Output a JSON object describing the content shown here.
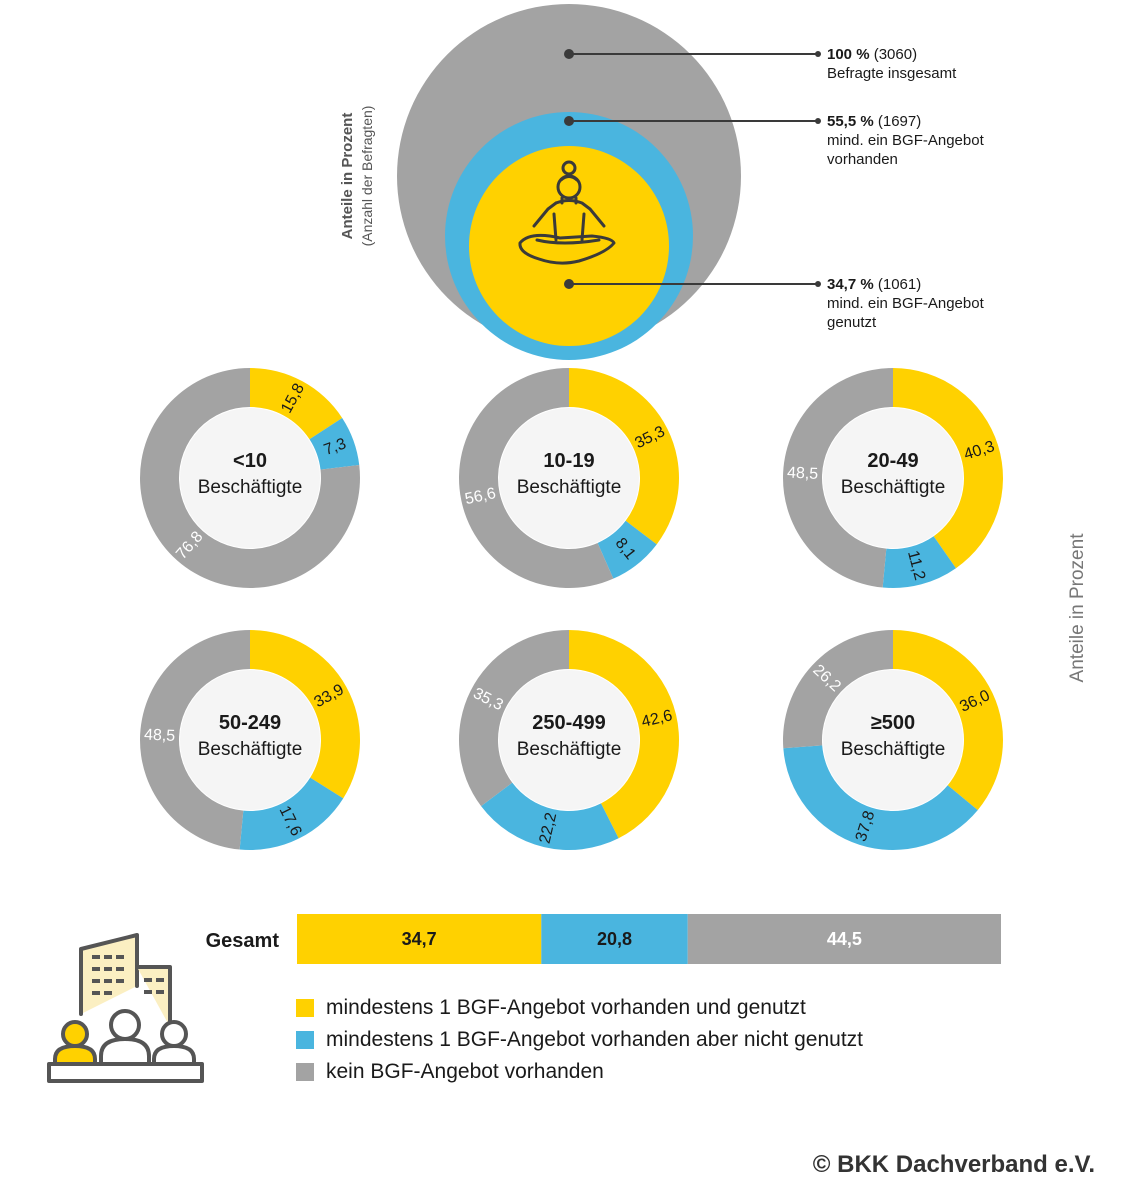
{
  "colors": {
    "yellow": "#FFD100",
    "blue": "#4AB5DF",
    "gray": "#A3A3A3",
    "inner": "#F5F5F5"
  },
  "top": {
    "axis_title": "Anteile in Prozent",
    "axis_subtitle": "(Anzahl der Befragten)",
    "labels": [
      {
        "pct": "100 %",
        "count": "(3060)",
        "lines": [
          "Befragte insgesamt"
        ]
      },
      {
        "pct": "55,5 %",
        "count": "(1697)",
        "lines": [
          "mind. ein BGF-Angebot",
          "vorhanden"
        ]
      },
      {
        "pct": "34,7 %",
        "count": "(1061)",
        "lines": [
          "mind. ein BGF-Angebot",
          "genutzt"
        ]
      }
    ]
  },
  "side_label": "Anteile in Prozent",
  "chart_data": [
    {
      "type": "bubble",
      "title": "Anteile in Prozent",
      "subtitle": "(Anzahl der Befragten)",
      "categories": [
        "Befragte insgesamt",
        "mind. ein BGF-Angebot vorhanden",
        "mind. ein BGF-Angebot genutzt"
      ],
      "values": [
        100,
        55.5,
        34.7
      ],
      "counts": [
        3060,
        1697,
        1061
      ]
    },
    {
      "type": "pie",
      "variant": "donut",
      "categories": [
        "mindestens 1 BGF-Angebot vorhanden und genutzt",
        "mindestens 1 BGF-Angebot vorhanden aber nicht genutzt",
        "kein BGF-Angebot vorhanden"
      ],
      "groups": [
        {
          "name_bold": "<10",
          "name": "Beschäftigte",
          "values": [
            15.8,
            7.3,
            76.8
          ],
          "labels": [
            "15,8",
            "7,3",
            "76,8"
          ]
        },
        {
          "name_bold": "10-19",
          "name": "Beschäftigte",
          "values": [
            35.3,
            8.1,
            56.6
          ],
          "labels": [
            "35,3",
            "8,1",
            "56,6"
          ]
        },
        {
          "name_bold": "20-49",
          "name": "Beschäftigte",
          "values": [
            40.3,
            11.2,
            48.5
          ],
          "labels": [
            "40,3",
            "11,2",
            "48,5"
          ]
        },
        {
          "name_bold": "50-249",
          "name": "Beschäftigte",
          "values": [
            33.9,
            17.6,
            48.5
          ],
          "labels": [
            "33,9",
            "17,6",
            "48,5"
          ]
        },
        {
          "name_bold": "250-499",
          "name": "Beschäftigte",
          "values": [
            42.6,
            22.2,
            35.3
          ],
          "labels": [
            "42,6",
            "22,2",
            "35,3"
          ]
        },
        {
          "name_bold": "≥500",
          "name": "Beschäftigte",
          "values": [
            36.0,
            37.8,
            26.2
          ],
          "labels": [
            "36,0",
            "37,8",
            "26,2"
          ]
        }
      ]
    },
    {
      "type": "bar",
      "variant": "stacked-horizontal",
      "category": "Gesamt",
      "values": [
        34.7,
        20.8,
        44.5
      ],
      "labels": [
        "34,7",
        "20,8",
        "44,5"
      ]
    }
  ],
  "legend": [
    {
      "label": "mindestens 1 BGF-Angebot vorhanden und genutzt",
      "color": "#FFD100"
    },
    {
      "label": "mindestens 1 BGF-Angebot vorhanden aber nicht genutzt",
      "color": "#4AB5DF"
    },
    {
      "label": "kein BGF-Angebot vorhanden",
      "color": "#A3A3A3"
    }
  ],
  "copyright": "© BKK Dachverband e.V."
}
